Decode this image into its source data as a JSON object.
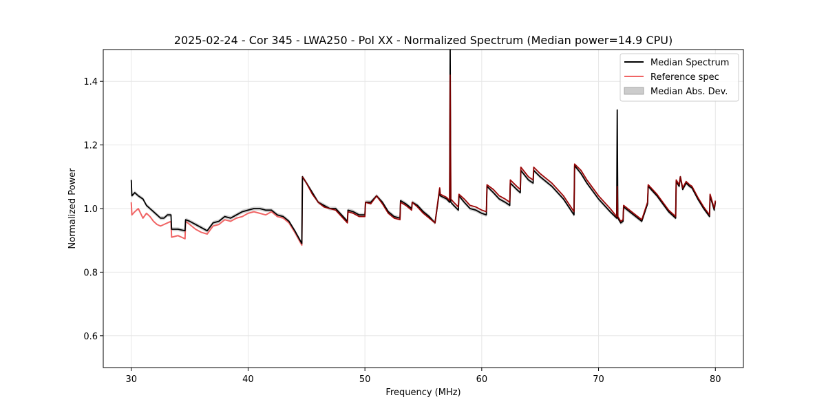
{
  "chart_data": {
    "type": "line",
    "title": "2025-02-24 - Cor 345 - LWA250 - Pol XX - Normalized Spectrum (Median power=14.9 CPU)",
    "xlabel": "Frequency (MHz)",
    "ylabel": "Normalized Power",
    "xlim": [
      27.6,
      82.4
    ],
    "ylim": [
      0.5,
      1.5
    ],
    "xticks": [
      30,
      40,
      50,
      60,
      70,
      80
    ],
    "yticks": [
      0.6,
      0.8,
      1.0,
      1.2,
      1.4
    ],
    "grid": true,
    "legend_position": "top-right",
    "colors": {
      "median": "#000000",
      "reference": "#f06464",
      "mad_fill": "#aaaaaa",
      "overlap": "#8b0000"
    },
    "series": [
      {
        "name": "Median Spectrum",
        "x": [
          30.0,
          30.05,
          30.3,
          30.6,
          31.0,
          31.3,
          31.6,
          31.9,
          32.2,
          32.5,
          32.8,
          33.1,
          33.4,
          33.45,
          34.0,
          34.6,
          34.65,
          35.0,
          35.5,
          36.0,
          36.5,
          37.0,
          37.5,
          38.0,
          38.5,
          39.0,
          39.5,
          40.0,
          40.5,
          41.0,
          41.5,
          42.0,
          42.5,
          43.0,
          43.5,
          44.0,
          44.6,
          44.65,
          45.0,
          45.5,
          46.0,
          46.5,
          47.0,
          47.5,
          48.0,
          48.5,
          48.55,
          49.0,
          49.5,
          50.0,
          50.05,
          50.5,
          51.0,
          51.5,
          52.0,
          52.5,
          53.0,
          53.05,
          53.5,
          54.0,
          54.05,
          54.5,
          55.0,
          55.5,
          56.0,
          56.4,
          56.45,
          57.0,
          57.25,
          57.3,
          57.35,
          57.6,
          58.0,
          58.05,
          58.5,
          59.0,
          59.5,
          60.0,
          60.4,
          60.45,
          61.0,
          61.5,
          62.0,
          62.4,
          62.45,
          63.0,
          63.3,
          63.35,
          64.0,
          64.4,
          64.45,
          65.0,
          66.0,
          67.0,
          67.9,
          67.95,
          68.5,
          69.0,
          70.0,
          71.0,
          71.55,
          71.6,
          71.65,
          71.9,
          72.1,
          72.15,
          73.0,
          73.7,
          74.2,
          74.25,
          75.0,
          75.6,
          76.0,
          76.6,
          76.65,
          76.9,
          77.0,
          77.2,
          77.5,
          77.8,
          78.0,
          78.5,
          79.0,
          79.5,
          79.55,
          79.9,
          80.0
        ],
        "y": [
          1.09,
          1.04,
          1.05,
          1.04,
          1.03,
          1.01,
          1.0,
          0.99,
          0.98,
          0.97,
          0.97,
          0.98,
          0.98,
          0.935,
          0.935,
          0.93,
          0.965,
          0.96,
          0.95,
          0.94,
          0.93,
          0.955,
          0.96,
          0.975,
          0.97,
          0.98,
          0.99,
          0.995,
          1.0,
          1.0,
          0.995,
          0.995,
          0.98,
          0.975,
          0.96,
          0.93,
          0.89,
          1.1,
          1.08,
          1.05,
          1.02,
          1.01,
          1.0,
          1.0,
          0.98,
          0.96,
          0.995,
          0.99,
          0.98,
          0.98,
          1.02,
          1.02,
          1.04,
          1.02,
          0.99,
          0.975,
          0.97,
          1.025,
          1.015,
          1.0,
          1.02,
          1.01,
          0.99,
          0.975,
          0.955,
          1.06,
          1.04,
          1.03,
          1.02,
          1.52,
          1.02,
          1.01,
          0.995,
          1.04,
          1.02,
          1.0,
          0.995,
          0.985,
          0.98,
          1.07,
          1.05,
          1.03,
          1.02,
          1.01,
          1.08,
          1.06,
          1.05,
          1.12,
          1.09,
          1.08,
          1.12,
          1.1,
          1.07,
          1.03,
          0.98,
          1.135,
          1.11,
          1.08,
          1.03,
          0.99,
          0.97,
          1.31,
          0.97,
          0.955,
          0.96,
          1.005,
          0.98,
          0.96,
          1.015,
          1.07,
          1.04,
          1.01,
          0.99,
          0.97,
          1.085,
          1.07,
          1.1,
          1.06,
          1.08,
          1.07,
          1.065,
          1.03,
          1.0,
          0.975,
          1.04,
          0.995,
          1.02
        ]
      },
      {
        "name": "Reference spec",
        "x": [
          30.0,
          30.05,
          30.3,
          30.6,
          31.0,
          31.3,
          31.6,
          31.9,
          32.2,
          32.5,
          32.8,
          33.1,
          33.4,
          33.45,
          34.0,
          34.6,
          34.65,
          35.0,
          35.5,
          36.0,
          36.5,
          37.0,
          37.5,
          38.0,
          38.5,
          39.0,
          39.5,
          40.0,
          40.5,
          41.0,
          41.5,
          42.0,
          42.5,
          43.0,
          43.5,
          44.0,
          44.6,
          44.65,
          45.0,
          45.5,
          46.0,
          46.5,
          47.0,
          47.5,
          48.0,
          48.5,
          48.55,
          49.0,
          49.5,
          50.0,
          50.05,
          50.5,
          51.0,
          51.5,
          52.0,
          52.5,
          53.0,
          53.05,
          53.5,
          54.0,
          54.05,
          54.5,
          55.0,
          55.5,
          56.0,
          56.4,
          56.45,
          57.0,
          57.25,
          57.3,
          57.35,
          57.6,
          58.0,
          58.05,
          58.5,
          59.0,
          59.5,
          60.0,
          60.4,
          60.45,
          61.0,
          61.5,
          62.0,
          62.4,
          62.45,
          63.0,
          63.3,
          63.35,
          64.0,
          64.4,
          64.45,
          65.0,
          66.0,
          67.0,
          67.9,
          67.95,
          68.5,
          69.0,
          70.0,
          71.0,
          71.55,
          71.6,
          71.65,
          71.9,
          72.1,
          72.15,
          73.0,
          73.7,
          74.2,
          74.25,
          75.0,
          75.6,
          76.0,
          76.6,
          76.65,
          76.9,
          77.0,
          77.2,
          77.5,
          77.8,
          78.0,
          78.5,
          79.0,
          79.5,
          79.55,
          79.9,
          80.0
        ],
        "y": [
          1.02,
          0.98,
          0.99,
          1.0,
          0.97,
          0.985,
          0.975,
          0.96,
          0.95,
          0.945,
          0.95,
          0.955,
          0.96,
          0.91,
          0.915,
          0.905,
          0.96,
          0.95,
          0.935,
          0.925,
          0.92,
          0.945,
          0.95,
          0.965,
          0.96,
          0.97,
          0.975,
          0.985,
          0.99,
          0.985,
          0.98,
          0.99,
          0.975,
          0.97,
          0.955,
          0.925,
          0.885,
          1.1,
          1.08,
          1.045,
          1.02,
          1.005,
          1.0,
          0.995,
          0.975,
          0.955,
          0.99,
          0.985,
          0.975,
          0.975,
          1.02,
          1.015,
          1.04,
          1.015,
          0.985,
          0.97,
          0.965,
          1.02,
          1.01,
          0.995,
          1.02,
          1.005,
          0.985,
          0.97,
          0.955,
          1.065,
          1.045,
          1.035,
          1.025,
          1.42,
          1.03,
          1.02,
          1.005,
          1.045,
          1.03,
          1.01,
          1.005,
          0.995,
          0.99,
          1.075,
          1.06,
          1.04,
          1.03,
          1.02,
          1.09,
          1.07,
          1.06,
          1.13,
          1.1,
          1.09,
          1.13,
          1.11,
          1.08,
          1.04,
          0.99,
          1.14,
          1.12,
          1.09,
          1.04,
          1.0,
          0.975,
          1.07,
          0.975,
          0.96,
          0.965,
          1.01,
          0.985,
          0.965,
          1.02,
          1.075,
          1.045,
          1.015,
          0.995,
          0.975,
          1.09,
          1.075,
          1.1,
          1.065,
          1.085,
          1.075,
          1.07,
          1.035,
          1.005,
          0.98,
          1.045,
          1.0,
          1.025
        ]
      }
    ],
    "legend": [
      {
        "label": "Median Spectrum"
      },
      {
        "label": "Reference spec"
      },
      {
        "label": "Median Abs. Dev."
      }
    ]
  }
}
